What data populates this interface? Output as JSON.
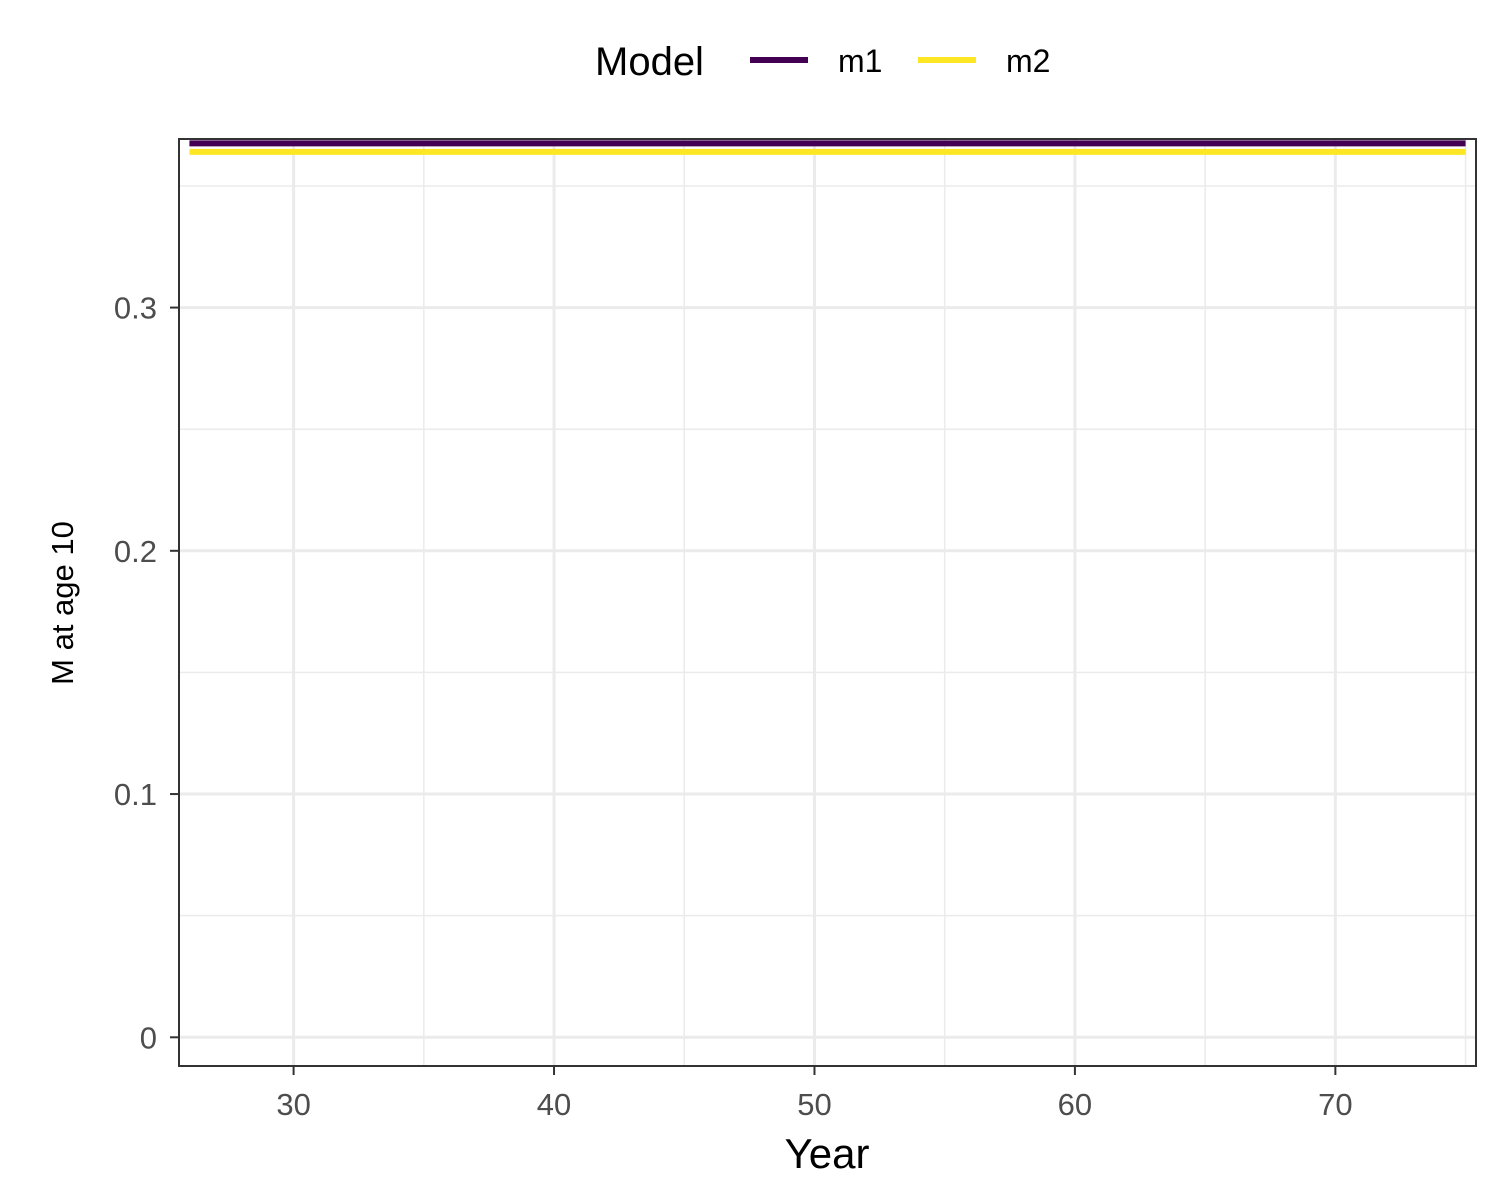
{
  "chart_data": {
    "type": "line",
    "xlabel": "Year",
    "ylabel": "M at age 10",
    "xlim": [
      25.6,
      75.4
    ],
    "ylim": [
      -0.0118,
      0.3693
    ],
    "x_ticks": [
      30,
      40,
      50,
      60,
      70
    ],
    "y_ticks": [
      0,
      0.1,
      0.2,
      0.3
    ],
    "x_tick_labels": [
      "30",
      "40",
      "50",
      "60",
      "70"
    ],
    "y_tick_labels": [
      "0",
      "0.1",
      "0.2",
      "0.3"
    ],
    "grid": true,
    "legend": {
      "title": "Model",
      "position": "top"
    },
    "series": [
      {
        "name": "m1",
        "color": "#440154",
        "x": [
          26,
          75
        ],
        "y": [
          0.3675,
          0.3675
        ]
      },
      {
        "name": "m2",
        "color": "#FDE725",
        "x": [
          26,
          75
        ],
        "y": [
          0.364,
          0.364
        ]
      }
    ]
  }
}
